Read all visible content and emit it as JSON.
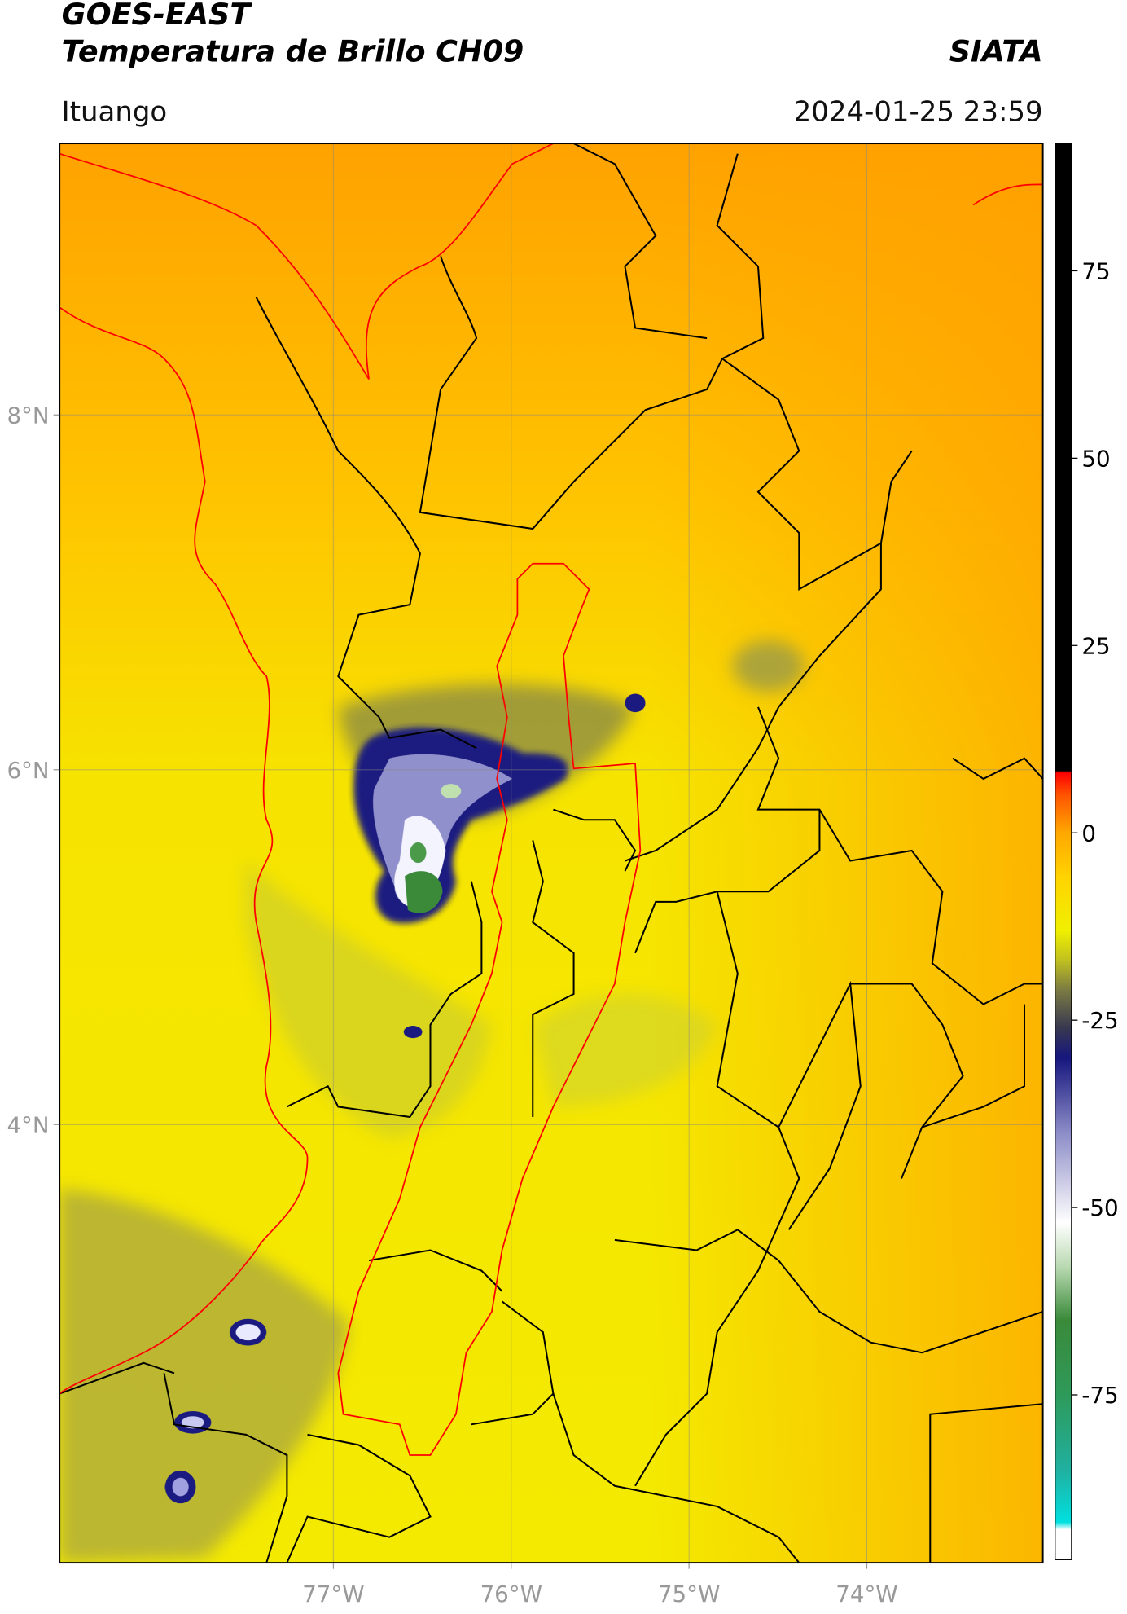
{
  "header": {
    "title": "GOES-EAST",
    "subtitle": "Temperatura de Brillo CH09",
    "org": "SIATA",
    "region": "Ituango",
    "datetime": "2024-01-25 23:59"
  },
  "map": {
    "lonlim": [
      -78.54,
      -73.01
    ],
    "latlim": [
      1.53,
      9.53
    ],
    "grid": true,
    "lonticks": [
      {
        "value": -77,
        "label": "77°W"
      },
      {
        "value": -76,
        "label": "76°W"
      },
      {
        "value": -75,
        "label": "75°W"
      },
      {
        "value": -74,
        "label": "74°W"
      }
    ],
    "latticks": [
      {
        "value": 8,
        "label": "8°N"
      },
      {
        "value": 6,
        "label": "6°N"
      },
      {
        "value": 4,
        "label": "4°N"
      }
    ]
  },
  "colorbar": {
    "lim": [
      -97,
      92
    ],
    "ticks": [
      -75,
      -50,
      -25,
      0,
      25,
      50,
      75
    ],
    "stops": [
      {
        "value": -97,
        "color": "#ffffff"
      },
      {
        "value": -93,
        "color": "#ffffff"
      },
      {
        "value": -92,
        "color": "#00e0e0"
      },
      {
        "value": -85,
        "color": "#20b0a0"
      },
      {
        "value": -75,
        "color": "#2e9a5a"
      },
      {
        "value": -65,
        "color": "#3a8a3a"
      },
      {
        "value": -58,
        "color": "#b8d8b0"
      },
      {
        "value": -52,
        "color": "#ffffff"
      },
      {
        "value": -40,
        "color": "#8c8cc8"
      },
      {
        "value": -30,
        "color": "#16167e"
      },
      {
        "value": -26,
        "color": "#383850"
      },
      {
        "value": -21,
        "color": "#7a7a44"
      },
      {
        "value": -17,
        "color": "#c0c020"
      },
      {
        "value": -13,
        "color": "#f0f000"
      },
      {
        "value": -6,
        "color": "#ffd400"
      },
      {
        "value": 0,
        "color": "#ffa800"
      },
      {
        "value": 5,
        "color": "#ff5500"
      },
      {
        "value": 8,
        "color": "#ff0000"
      },
      {
        "value": 8.3,
        "color": "#000000"
      },
      {
        "value": 92,
        "color": "#000000"
      }
    ]
  }
}
